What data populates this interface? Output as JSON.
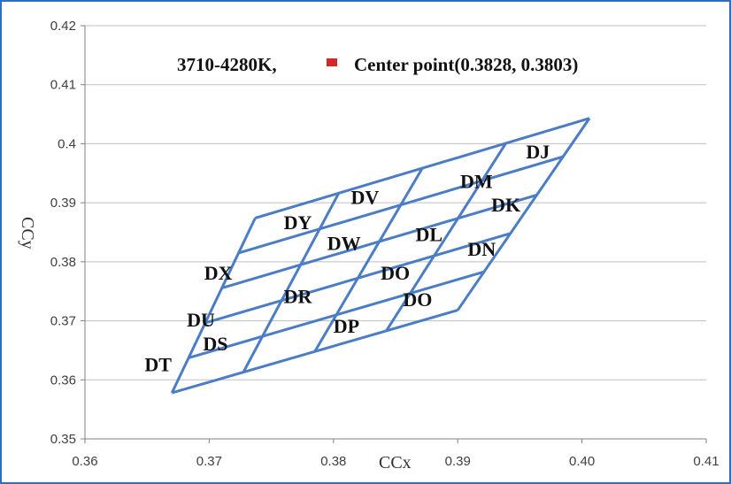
{
  "chart_data": {
    "type": "scatter",
    "title_left": "3710-4280K,",
    "title_right": "Center point(0.3828, 0.3803)",
    "xlabel": "CCx",
    "ylabel": "CCy",
    "xlim": [
      0.36,
      0.41
    ],
    "ylim": [
      0.35,
      0.42
    ],
    "xticks": [
      "0.36",
      "0.37",
      "0.38",
      "0.39",
      "0.40",
      "0.41"
    ],
    "yticks": [
      "0.35",
      "0.36",
      "0.37",
      "0.38",
      "0.39",
      "0.4",
      "0.41",
      "0.42"
    ],
    "grid": "horizontal",
    "colors": {
      "line": "#4a7dc6",
      "grid": "#bfbfbf",
      "marker": "#d62728",
      "frame": "#2f6fbd"
    },
    "center_point": {
      "x": 0.3828,
      "y": 0.3803
    },
    "quadrilateral": {
      "corners": {
        "top_left": [
          0.3737,
          0.3874
        ],
        "top_right": [
          0.4006,
          0.4043
        ],
        "bottom_right": [
          0.39,
          0.3718
        ],
        "bottom_left": [
          0.367,
          0.3578
        ]
      },
      "rows": 5,
      "cols": 4
    },
    "cells": [
      {
        "label": "DY",
        "x": 0.376,
        "y": 0.3855
      },
      {
        "label": "DV",
        "x": 0.3814,
        "y": 0.3898
      },
      {
        "label": "DM",
        "x": 0.3902,
        "y": 0.3925
      },
      {
        "label": "DJ",
        "x": 0.3955,
        "y": 0.3975
      },
      {
        "label": "DX",
        "x": 0.3696,
        "y": 0.377
      },
      {
        "label": "DW",
        "x": 0.3795,
        "y": 0.382
      },
      {
        "label": "DL",
        "x": 0.3866,
        "y": 0.3835
      },
      {
        "label": "DK",
        "x": 0.3927,
        "y": 0.3885
      },
      {
        "label": "DU",
        "x": 0.3682,
        "y": 0.369
      },
      {
        "label": "DR",
        "x": 0.376,
        "y": 0.373
      },
      {
        "label": "DO",
        "x": 0.3838,
        "y": 0.377
      },
      {
        "label": "DN",
        "x": 0.3908,
        "y": 0.381
      },
      {
        "label": "DT",
        "x": 0.3648,
        "y": 0.3615
      },
      {
        "label": "DS",
        "x": 0.3695,
        "y": 0.365
      },
      {
        "label": "DP",
        "x": 0.38,
        "y": 0.368
      },
      {
        "label": "DO",
        "x": 0.3856,
        "y": 0.3725
      }
    ]
  }
}
